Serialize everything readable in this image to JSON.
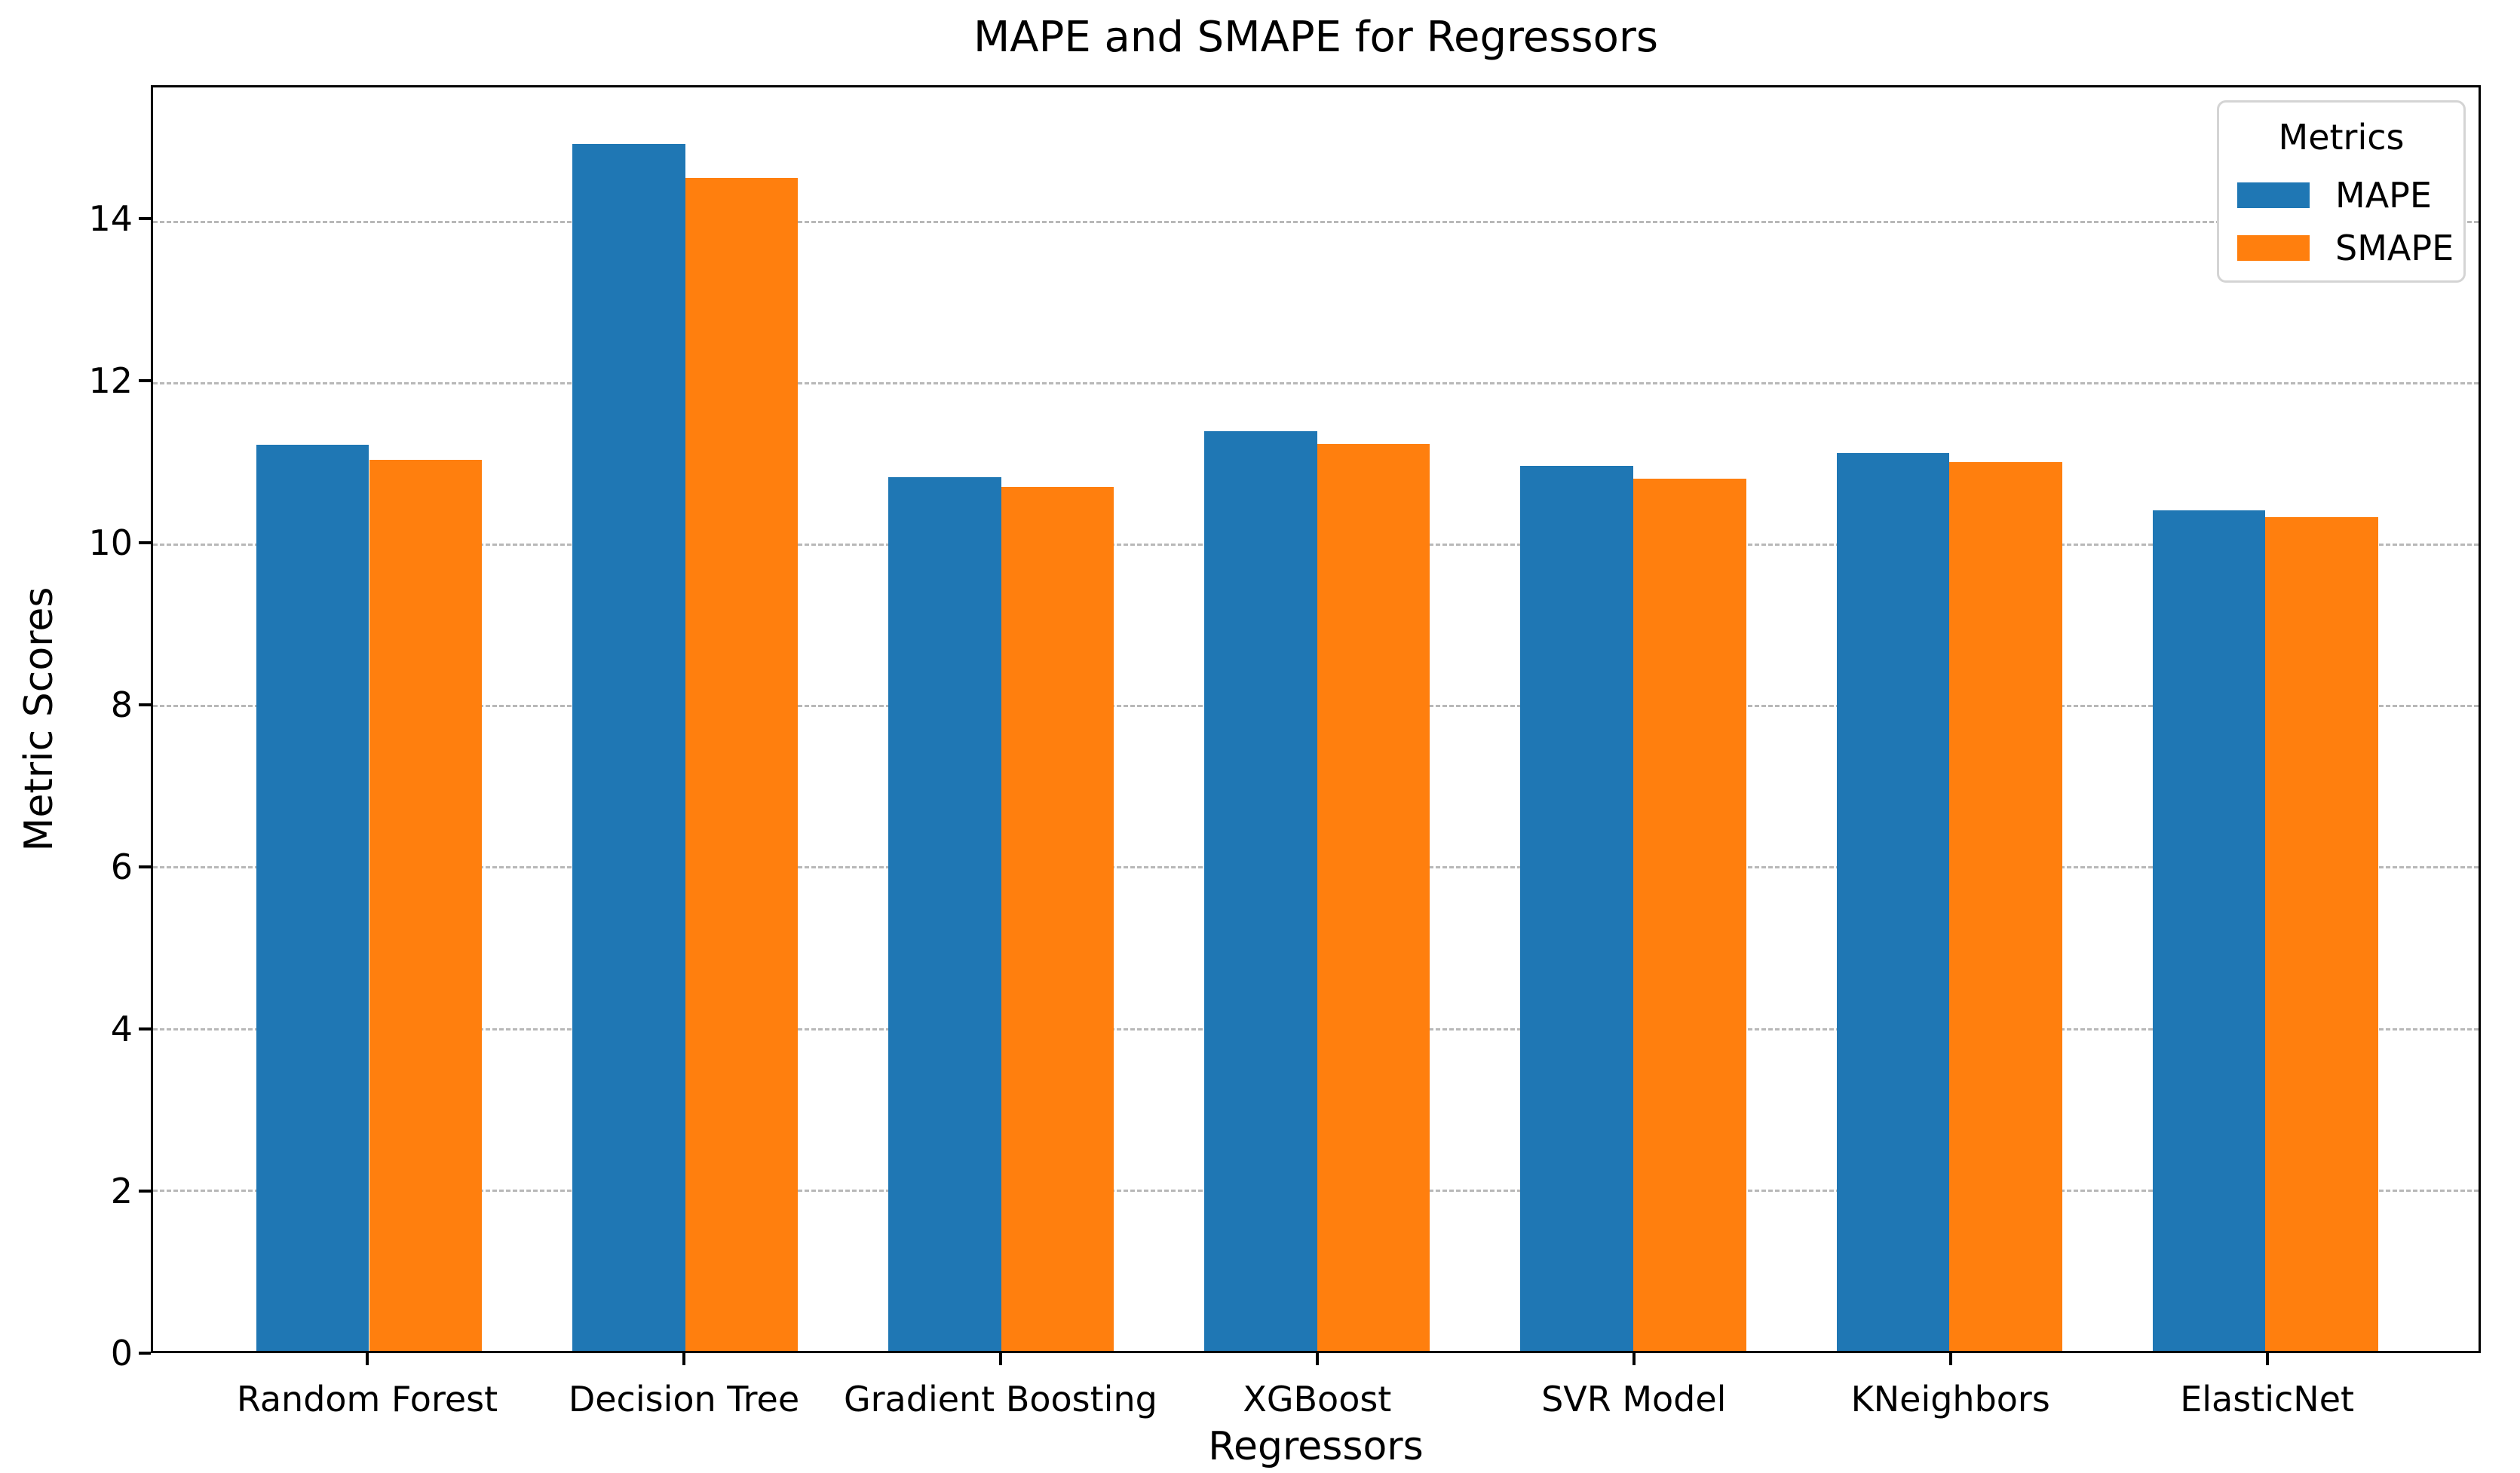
{
  "chart_data": {
    "type": "bar",
    "title": "MAPE and SMAPE for Regressors",
    "xlabel": "Regressors",
    "ylabel": "Metric Scores",
    "categories": [
      "Random Forest",
      "Decision Tree",
      "Gradient Boosting",
      "XGBoost",
      "SVR Model",
      "KNeighbors",
      "ElasticNet"
    ],
    "series": [
      {
        "name": "MAPE",
        "color": "#1f77b4",
        "values": [
          11.22,
          14.95,
          10.82,
          11.39,
          10.96,
          11.12,
          10.41
        ]
      },
      {
        "name": "SMAPE",
        "color": "#ff7f0e",
        "values": [
          11.04,
          14.53,
          10.7,
          11.23,
          10.8,
          11.01,
          10.33
        ]
      }
    ],
    "legend": {
      "title": "Metrics",
      "entries": [
        "MAPE",
        "SMAPE"
      ],
      "position": "upper-right"
    },
    "ylim": [
      0,
      15.65
    ],
    "yticks": [
      0,
      2,
      4,
      6,
      8,
      10,
      12,
      14
    ],
    "grid": {
      "axis": "y",
      "style": "dashed",
      "color": "#b8b8b8"
    }
  }
}
